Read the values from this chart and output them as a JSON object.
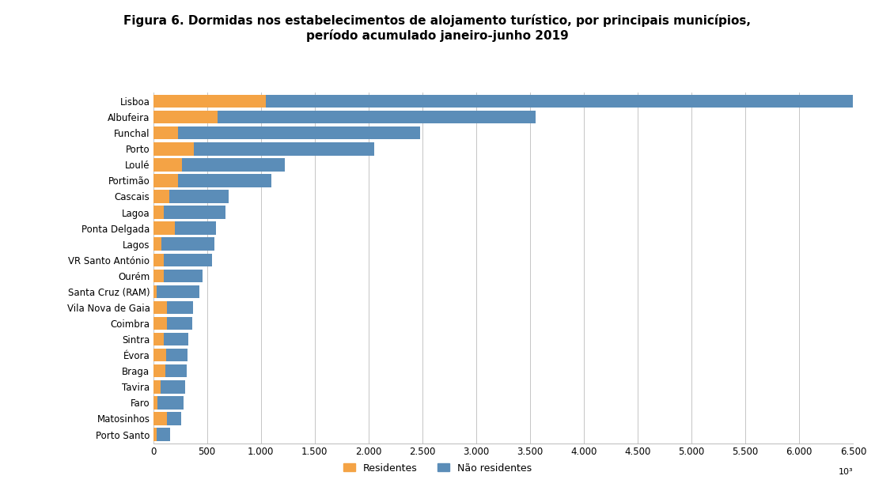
{
  "title_line1": "Figura 6. Dormidas nos estabelecimentos de alojamento turístico, por principais municípios,",
  "title_line2": "período acumulado janeiro-junho 2019",
  "municipalities": [
    "Lisboa",
    "Albufeira",
    "Funchal",
    "Porto",
    "Loulé",
    "Portimão",
    "Cascais",
    "Lagoa",
    "Ponta Delgada",
    "Lagos",
    "VR Santo António",
    "Ourém",
    "Santa Cruz (RAM)",
    "Vila Nova de Gaia",
    "Coimbra",
    "Sintra",
    "Évora",
    "Braga",
    "Tavira",
    "Faro",
    "Matosinhos",
    "Porto Santo"
  ],
  "residentes": [
    1050,
    600,
    230,
    380,
    270,
    230,
    150,
    100,
    200,
    80,
    100,
    100,
    30,
    130,
    130,
    100,
    120,
    110,
    70,
    40,
    130,
    30
  ],
  "nao_residentes": [
    5450,
    2950,
    2250,
    1670,
    950,
    870,
    550,
    570,
    380,
    490,
    450,
    360,
    400,
    240,
    230,
    230,
    200,
    200,
    230,
    240,
    130,
    130
  ],
  "color_residentes": "#F4A345",
  "color_nao_residentes": "#5B8DB8",
  "background_color": "#FFFFFF",
  "grid_color": "#BBBBBB",
  "xlim": [
    0,
    6500
  ],
  "xticks": [
    0,
    500,
    1000,
    1500,
    2000,
    2500,
    3000,
    3500,
    4000,
    4500,
    5000,
    5500,
    6000,
    6500
  ],
  "unit_annotation": "10³",
  "legend_residentes": "Residentes",
  "legend_nao_residentes": "Não residentes",
  "bar_height": 0.82,
  "title_fontsize": 11,
  "tick_fontsize": 8.5,
  "ylabel_fontsize": 8.5
}
